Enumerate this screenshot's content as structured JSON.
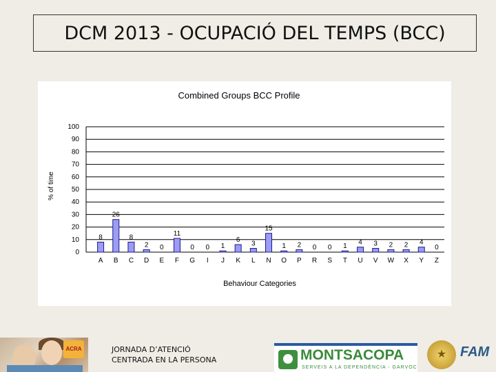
{
  "slide": {
    "title": "DCM  2013 - OCUPACIÓ DEL TEMPS (BCC)",
    "footer_line1": "JORNADA D’ATENCIÓ",
    "footer_line2": "CENTRADA EN LA PERSONA"
  },
  "logos": {
    "montsacopa_name": "MONTSACOPA",
    "montsacopa_tagline": "SERVEIS A LA DEPENDÈNCIA - GARVOC",
    "acra": "ACRA",
    "fam": "FAM"
  },
  "colors": {
    "bar_fill": "#9c9cf4",
    "bar_stroke": "#1a1a8c",
    "grid": "#000000",
    "background": "#efede6"
  },
  "chart_data": {
    "type": "bar",
    "title": "Combined Groups BCC Profile",
    "xlabel": "Behaviour Categories",
    "ylabel": "% of time",
    "ylim": [
      0,
      100
    ],
    "yticks": [
      0,
      10,
      20,
      30,
      40,
      50,
      60,
      70,
      80,
      90,
      100
    ],
    "grid": true,
    "categories": [
      "A",
      "B",
      "C",
      "D",
      "E",
      "F",
      "G",
      "I",
      "J",
      "K",
      "L",
      "N",
      "O",
      "P",
      "R",
      "S",
      "T",
      "U",
      "V",
      "W",
      "X",
      "Y",
      "Z"
    ],
    "values": [
      8,
      26,
      8,
      2,
      0,
      11,
      0,
      0,
      1,
      6,
      3,
      15,
      1,
      2,
      0,
      0,
      1,
      4,
      3,
      2,
      2,
      4,
      0
    ],
    "data_labels": [
      "8",
      "26",
      "8",
      "2",
      "0",
      "11",
      "0",
      "0",
      "1",
      "6",
      "3",
      "15",
      "1",
      "2",
      "0",
      "0",
      "1",
      "4",
      "3",
      "2",
      "2",
      "4",
      "0"
    ]
  }
}
